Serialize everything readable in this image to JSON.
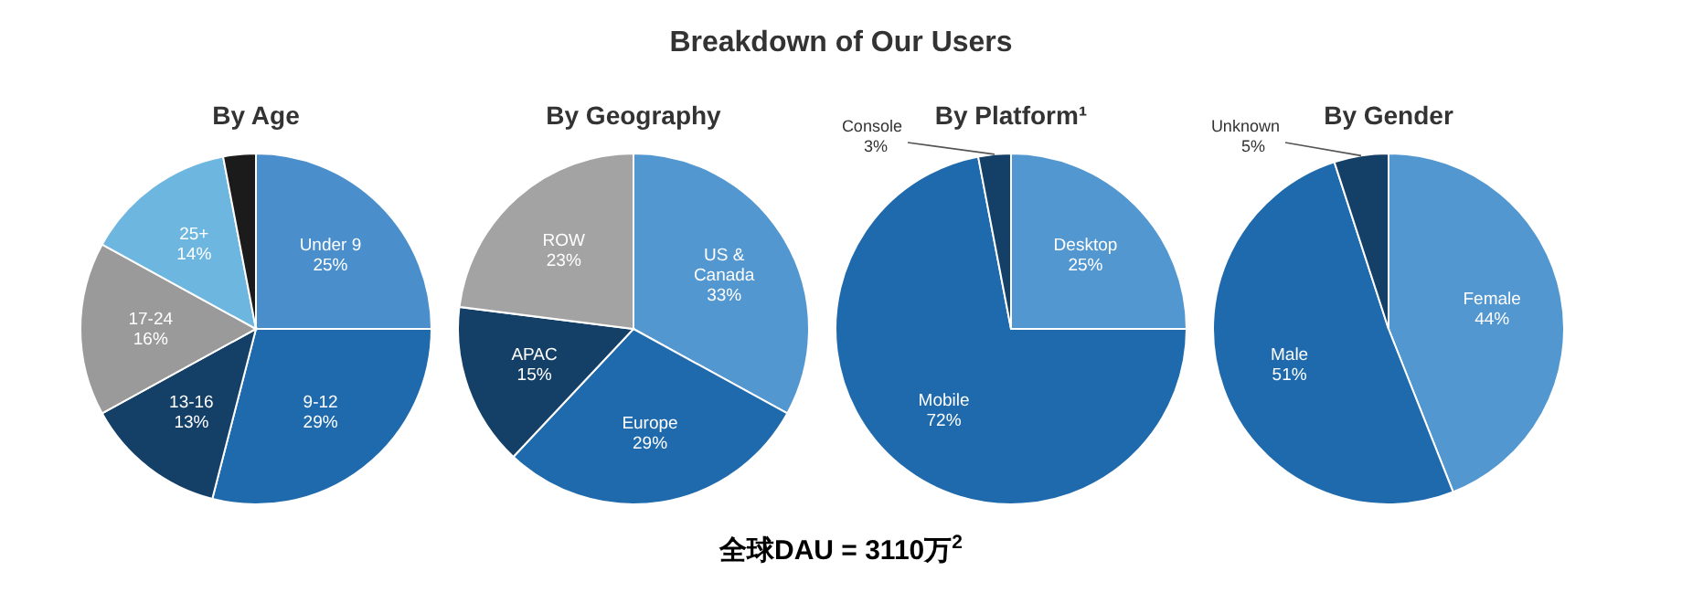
{
  "chart_data": [
    {
      "type": "other",
      "title": "Breakdown of Our Users",
      "annotations": [
        "全球DAU = 3110万$^{2}$"
      ]
    },
    {
      "type": "pie",
      "title": "By Age",
      "categories": [
        "Under 9",
        "9-12",
        "13-16",
        "17-24",
        "25+",
        null
      ],
      "values": [
        25,
        29,
        13,
        16,
        14,
        3
      ],
      "value_labels": [
        "25%",
        "29%",
        "13%",
        "16%",
        "14%",
        null
      ],
      "colors": [
        "#4a8fcb",
        "#1f6aad",
        "#143f66",
        "#9a9a9a",
        "#6cb6e0",
        "#1b1b1b"
      ]
    },
    {
      "type": "pie",
      "title": "By Geography",
      "categories": [
        "US & Canada",
        "Europe",
        "APAC",
        "ROW"
      ],
      "values": [
        33,
        29,
        15,
        23
      ],
      "value_labels": [
        "33%",
        "29%",
        "15%",
        "23%"
      ],
      "colors": [
        "#5397d0",
        "#1f6aad",
        "#143f66",
        "#a3a3a3"
      ]
    },
    {
      "type": "pie",
      "title": "By Platform¹",
      "categories": [
        "Desktop",
        "Mobile",
        "Console"
      ],
      "values": [
        25,
        72,
        3
      ],
      "value_labels": [
        "25%",
        "72%",
        "3%"
      ],
      "colors": [
        "#5397d0",
        "#1f6aad",
        "#143f66"
      ]
    },
    {
      "type": "pie",
      "title": "By Gender",
      "categories": [
        "Female",
        "Male",
        "Unknown"
      ],
      "values": [
        44,
        51,
        5
      ],
      "value_labels": [
        "44%",
        "51%",
        "5%"
      ],
      "colors": [
        "#5397d0",
        "#1f6aad",
        "#143f66"
      ]
    }
  ]
}
